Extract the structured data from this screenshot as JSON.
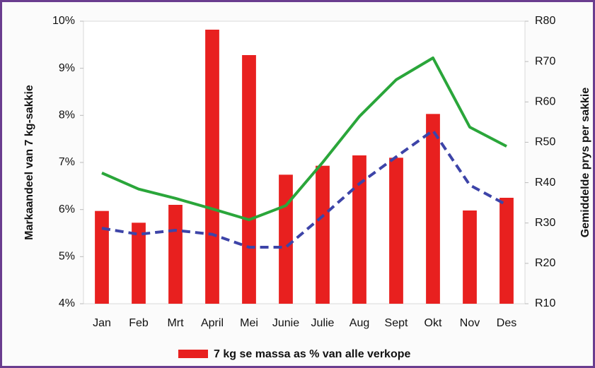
{
  "chart_data": {
    "type": "bar-line",
    "y_label": "Markaandeel van 7 kg-sakkie",
    "y2_label": "Gemiddelde prys per sakkie",
    "categories": [
      "Jan",
      "Feb",
      "Mrt",
      "April",
      "Mei",
      "Junie",
      "Julie",
      "Aug",
      "Sept",
      "Okt",
      "Nov",
      "Des"
    ],
    "series": [
      {
        "name": "7 kg se massa as % van alle verkope",
        "type": "bar",
        "color": "#e8201f",
        "values": [
          5.97,
          5.72,
          6.1,
          9.82,
          9.28,
          6.74,
          6.93,
          7.15,
          7.1,
          8.03,
          5.98,
          6.25
        ]
      },
      {
        "type": "line",
        "axis": "y2",
        "color": "#2aa63a",
        "dash": false,
        "values": [
          42.4,
          38.4,
          36.1,
          33.5,
          30.8,
          34.3,
          45,
          56.4,
          65.5,
          70.9,
          53.75,
          49
        ]
      },
      {
        "type": "line",
        "axis": "y2",
        "color": "#3d44a8",
        "dash": true,
        "values": [
          28.7,
          27.2,
          28.2,
          27.2,
          24,
          24,
          31.7,
          39.75,
          46.4,
          52.9,
          39.4,
          34.5
        ]
      }
    ],
    "ylim": [
      4,
      10
    ],
    "yticks": [
      {
        "value": 4,
        "label": "4%"
      },
      {
        "value": 5,
        "label": "5%"
      },
      {
        "value": 6,
        "label": "6%"
      },
      {
        "value": 7,
        "label": "7%"
      },
      {
        "value": 8,
        "label": "8%"
      },
      {
        "value": 9,
        "label": "9%"
      },
      {
        "value": 10,
        "label": "10%"
      }
    ],
    "y2lim": [
      10,
      80
    ],
    "y2ticks": [
      {
        "value": 10,
        "label": "R10"
      },
      {
        "value": 20,
        "label": "R20"
      },
      {
        "value": 30,
        "label": "R30"
      },
      {
        "value": 40,
        "label": "R40"
      },
      {
        "value": 50,
        "label": "R50"
      },
      {
        "value": 60,
        "label": "R60"
      },
      {
        "value": 70,
        "label": "R70"
      },
      {
        "value": 80,
        "label": "R80"
      }
    ],
    "legend": "bottom"
  }
}
